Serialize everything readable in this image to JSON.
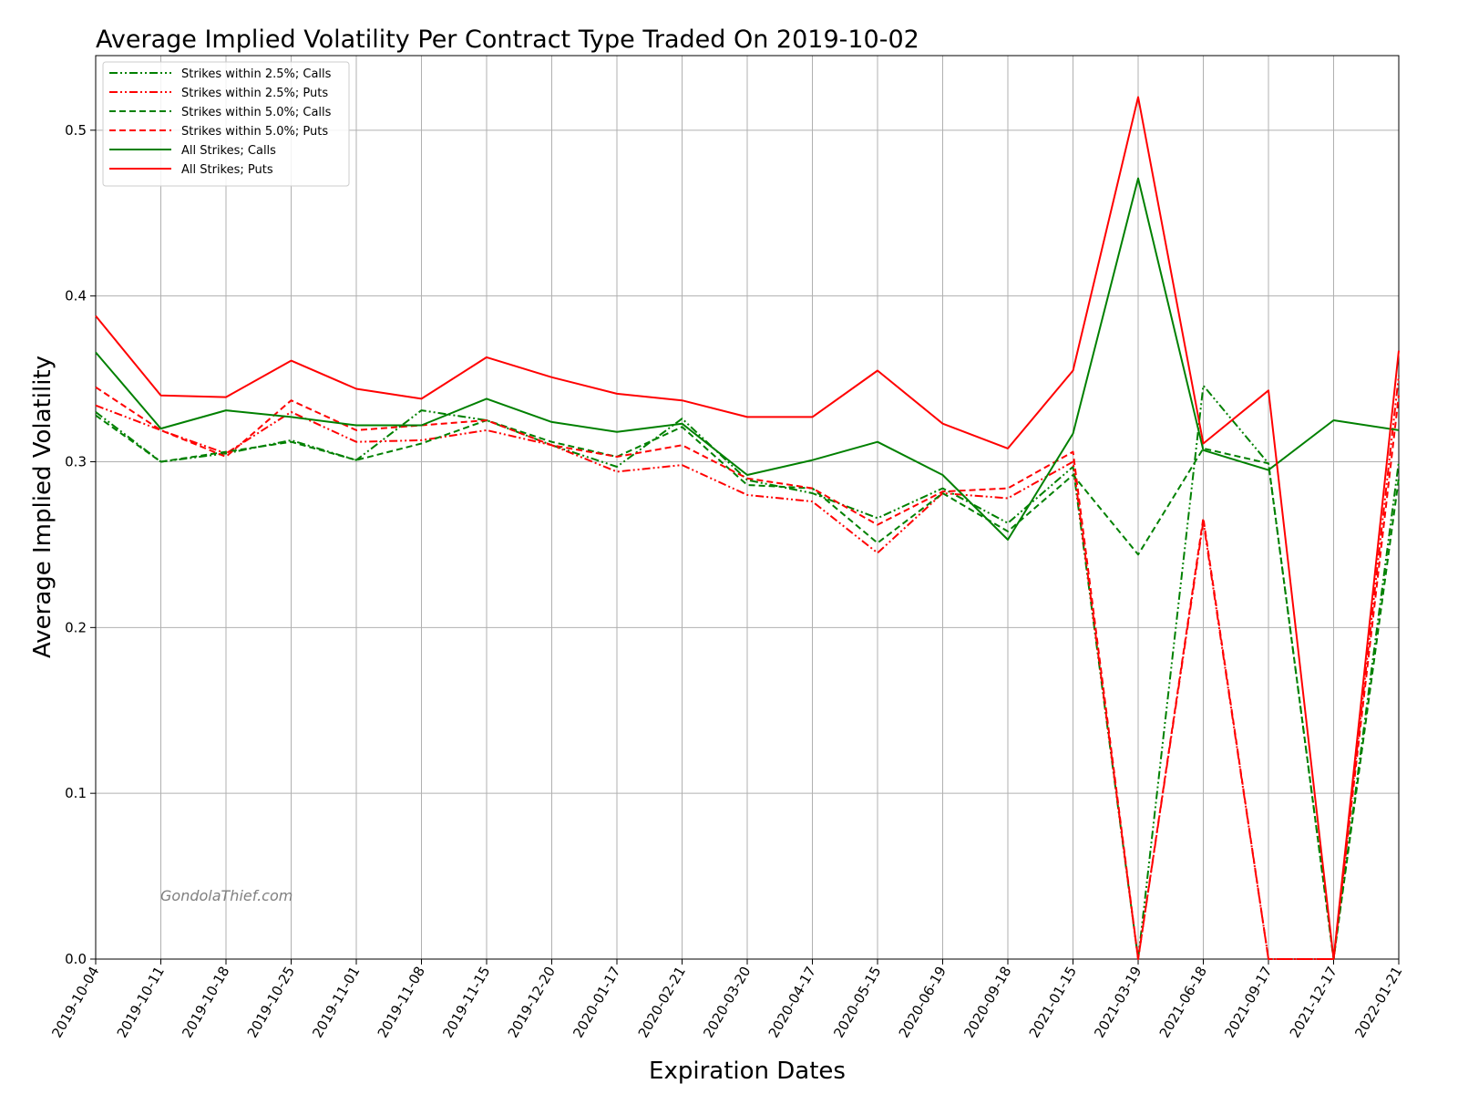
{
  "chart_data": {
    "type": "line",
    "title": "Average Implied Volatility Per Contract Type Traded On 2019-10-02",
    "xlabel": "Expiration Dates",
    "ylabel": "Average Implied Volatility",
    "watermark": "GondolaThief.com",
    "ylim": [
      0.0,
      0.545
    ],
    "yticks": [
      0.0,
      0.1,
      0.2,
      0.3,
      0.4,
      0.5
    ],
    "ytick_labels": [
      "0.0",
      "0.1",
      "0.2",
      "0.3",
      "0.4",
      "0.5"
    ],
    "grid": true,
    "legend_position": "top-left",
    "categories": [
      "2019-10-04",
      "2019-10-11",
      "2019-10-18",
      "2019-10-25",
      "2019-11-01",
      "2019-11-08",
      "2019-11-15",
      "2019-12-20",
      "2020-01-17",
      "2020-02-21",
      "2020-03-20",
      "2020-04-17",
      "2020-05-15",
      "2020-06-19",
      "2020-09-18",
      "2021-01-15",
      "2021-03-19",
      "2021-06-18",
      "2021-09-17",
      "2021-12-17",
      "2022-01-21"
    ],
    "series": [
      {
        "name": "Strikes within 2.5%; Calls",
        "color": "#008000",
        "dash": "dashdotdot",
        "values": [
          0.33,
          0.3,
          0.305,
          0.313,
          0.301,
          0.331,
          0.325,
          0.31,
          0.297,
          0.326,
          0.289,
          0.281,
          0.266,
          0.284,
          0.263,
          0.297,
          0.0,
          0.346,
          0.299,
          0.0,
          0.3
        ]
      },
      {
        "name": "Strikes within 2.5%; Puts",
        "color": "#ff0000",
        "dash": "dashdotdot",
        "values": [
          0.334,
          0.319,
          0.305,
          0.33,
          0.312,
          0.313,
          0.319,
          0.31,
          0.294,
          0.298,
          0.28,
          0.276,
          0.245,
          0.281,
          0.278,
          0.3,
          0.0,
          0.264,
          0.0,
          0.0,
          0.352
        ]
      },
      {
        "name": "Strikes within 5.0%; Calls",
        "color": "#008000",
        "dash": "dashed",
        "values": [
          0.328,
          0.3,
          0.306,
          0.312,
          0.301,
          0.311,
          0.325,
          0.312,
          0.303,
          0.321,
          0.286,
          0.284,
          0.251,
          0.281,
          0.258,
          0.292,
          0.244,
          0.308,
          0.299,
          0.0,
          0.29
        ]
      },
      {
        "name": "Strikes within 5.0%; Puts",
        "color": "#ff0000",
        "dash": "dashed",
        "values": [
          0.345,
          0.319,
          0.303,
          0.337,
          0.319,
          0.322,
          0.325,
          0.31,
          0.303,
          0.31,
          0.29,
          0.284,
          0.262,
          0.282,
          0.284,
          0.306,
          0.0,
          0.266,
          0.0,
          0.0,
          0.34
        ]
      },
      {
        "name": "All Strikes; Calls",
        "color": "#008000",
        "dash": "solid",
        "values": [
          0.366,
          0.32,
          0.331,
          0.327,
          0.322,
          0.322,
          0.338,
          0.324,
          0.318,
          0.323,
          0.292,
          0.301,
          0.312,
          0.292,
          0.253,
          0.317,
          0.471,
          0.307,
          0.295,
          0.325,
          0.319
        ]
      },
      {
        "name": "All Strikes; Puts",
        "color": "#ff0000",
        "dash": "solid",
        "values": [
          0.388,
          0.34,
          0.339,
          0.361,
          0.344,
          0.338,
          0.363,
          0.351,
          0.341,
          0.337,
          0.327,
          0.327,
          0.355,
          0.323,
          0.308,
          0.355,
          0.52,
          0.311,
          0.343,
          0.0,
          0.367
        ]
      }
    ]
  }
}
